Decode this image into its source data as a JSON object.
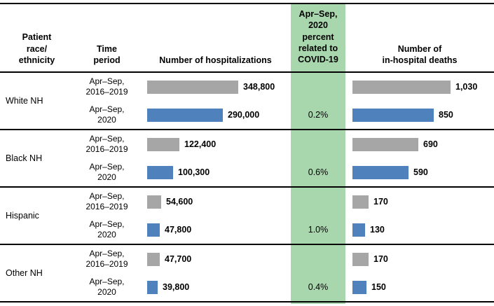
{
  "header": {
    "race": "Patient\nrace/\nethnicity",
    "period": "Time\nperiod",
    "hospitalizations": "Number of hospitalizations",
    "covid": "Apr–Sep,\n2020\npercent\nrelated to\nCOVID-19",
    "deaths": "Number of\nin-hospital deaths"
  },
  "colors": {
    "bar_prior_gray": "#a6a6a6",
    "bar_2020_blue": "#4f81bd",
    "covid_band_green": "#a9d7ad"
  },
  "chart_data": {
    "type": "bar",
    "orientation": "horizontal",
    "series_legend": [
      "Apr–Sep, 2016–2019 (gray)",
      "Apr–Sep, 2020 (blue)"
    ],
    "x_max_hospitalizations": 348800,
    "x_max_deaths": 1030,
    "groups": [
      {
        "race": "White NH",
        "rows": [
          {
            "period": "Apr–Sep,\n2016–2019",
            "series": "prior",
            "hospitalizations": 348800,
            "hospitalizations_label": "348,800",
            "covid_pct": "",
            "deaths": 1030,
            "deaths_label": "1,030"
          },
          {
            "period": "Apr–Sep,\n2020",
            "series": "current",
            "hospitalizations": 290000,
            "hospitalizations_label": "290,000",
            "covid_pct": "0.2%",
            "deaths": 850,
            "deaths_label": "850"
          }
        ]
      },
      {
        "race": "Black NH",
        "rows": [
          {
            "period": "Apr–Sep,\n2016–2019",
            "series": "prior",
            "hospitalizations": 122400,
            "hospitalizations_label": "122,400",
            "covid_pct": "",
            "deaths": 690,
            "deaths_label": "690"
          },
          {
            "period": "Apr–Sep,\n2020",
            "series": "current",
            "hospitalizations": 100300,
            "hospitalizations_label": "100,300",
            "covid_pct": "0.6%",
            "deaths": 590,
            "deaths_label": "590"
          }
        ]
      },
      {
        "race": "Hispanic",
        "rows": [
          {
            "period": "Apr–Sep,\n2016–2019",
            "series": "prior",
            "hospitalizations": 54600,
            "hospitalizations_label": "54,600",
            "covid_pct": "",
            "deaths": 170,
            "deaths_label": "170"
          },
          {
            "period": "Apr–Sep,\n2020",
            "series": "current",
            "hospitalizations": 47800,
            "hospitalizations_label": "47,800",
            "covid_pct": "1.0%",
            "deaths": 130,
            "deaths_label": "130"
          }
        ]
      },
      {
        "race": "Other NH",
        "rows": [
          {
            "period": "Apr–Sep,\n2016–2019",
            "series": "prior",
            "hospitalizations": 47700,
            "hospitalizations_label": "47,700",
            "covid_pct": "",
            "deaths": 170,
            "deaths_label": "170"
          },
          {
            "period": "Apr–Sep,\n2020",
            "series": "current",
            "hospitalizations": 39800,
            "hospitalizations_label": "39,800",
            "covid_pct": "0.4%",
            "deaths": 150,
            "deaths_label": "150"
          }
        ]
      }
    ]
  }
}
